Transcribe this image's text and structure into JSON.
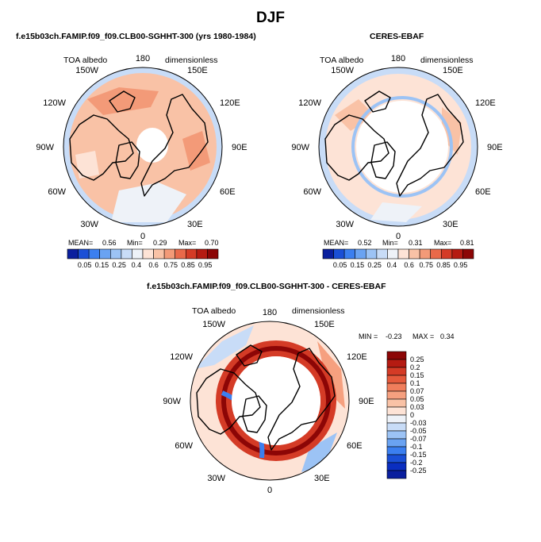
{
  "title": "DJF",
  "panels": [
    {
      "title": "f.e15b03ch.FAMIP.f09_f09.CLB00-SGHHT-300 (yrs 1980-1984)",
      "var_label": "TOA albedo",
      "units": "dimensionless",
      "stats": {
        "mean_label": "MEAN=",
        "mean": "0.56",
        "min_label": "Min=",
        "min": "0.29",
        "max_label": "Max=",
        "max": "0.70"
      }
    },
    {
      "title": "CERES-EBAF",
      "var_label": "TOA albedo",
      "units": "dimensionless",
      "stats": {
        "mean_label": "MEAN=",
        "mean": "0.52",
        "min_label": "Min=",
        "min": "0.31",
        "max_label": "Max=",
        "max": "0.81"
      }
    },
    {
      "title": "f.e15b03ch.FAMIP.f09_f09.CLB00-SGHHT-300 - CERES-EBAF",
      "var_label": "TOA albedo",
      "units": "dimensionless",
      "stats": {
        "min_label": "MIN =",
        "min": "-0.23",
        "max_label": "MAX =",
        "max": "0.34"
      }
    }
  ],
  "lon_labels": [
    "180",
    "150E",
    "120E",
    "90E",
    "60E",
    "30E",
    "0",
    "30W",
    "60W",
    "90W",
    "120W",
    "150W"
  ],
  "colorbars": {
    "absolute": {
      "labels": [
        "0.05",
        "0.15",
        "0.25",
        "0.4",
        "0.6",
        "0.75",
        "0.85",
        "0.95"
      ],
      "colors": [
        "#0a1f9e",
        "#1a4fd6",
        "#3b7ff0",
        "#6aa3f2",
        "#9cc3f5",
        "#c8dcf7",
        "#eef2f8",
        "#fde3d6",
        "#f9c2a6",
        "#f39a78",
        "#e9694a",
        "#d43b26",
        "#b51b12",
        "#8c0606"
      ]
    },
    "difference": {
      "labels": [
        "0.25",
        "0.2",
        "0.15",
        "0.1",
        "0.07",
        "0.05",
        "0.03",
        "0",
        "-0.03",
        "-0.05",
        "-0.07",
        "-0.1",
        "-0.15",
        "-0.2",
        "-0.25"
      ],
      "colors": [
        "#8c0606",
        "#b51b12",
        "#d43b26",
        "#e55a3c",
        "#f07e5c",
        "#f6a07f",
        "#f9c2a6",
        "#fde3d6",
        "#eef2f8",
        "#c8dcf7",
        "#9cc3f5",
        "#6aa3f2",
        "#3b7ff0",
        "#1a4fd6",
        "#0a2ec0",
        "#0a1f9e"
      ]
    }
  },
  "chart_data": [
    {
      "type": "heatmap",
      "projection": "north polar stereographic",
      "title": "f.e15b03ch.FAMIP.f09_f09.CLB00-SGHHT-300 (yrs 1980-1984)",
      "variable": "TOA albedo",
      "units": "dimensionless",
      "mean": 0.56,
      "min": 0.29,
      "max": 0.7,
      "levels": [
        0.05,
        0.15,
        0.25,
        0.4,
        0.6,
        0.75,
        0.85,
        0.95
      ],
      "pattern": "mostly 0.6-0.75 over ocean and continents, lower (0.4-0.6) in a band near the domain edge, white (missing) cap over the pole"
    },
    {
      "type": "heatmap",
      "projection": "north polar stereographic",
      "title": "CERES-EBAF",
      "variable": "TOA albedo",
      "units": "dimensionless",
      "mean": 0.52,
      "min": 0.31,
      "max": 0.81,
      "levels": [
        0.05,
        0.15,
        0.25,
        0.4,
        0.6,
        0.75,
        0.85,
        0.95
      ],
      "pattern": "mostly 0.4-0.6 with patches of 0.6-0.75, large white (missing) region over the polar cap"
    },
    {
      "type": "heatmap",
      "projection": "north polar stereographic",
      "title": "f.e15b03ch.FAMIP.f09_f09.CLB00-SGHHT-300 - CERES-EBAF",
      "variable": "TOA albedo",
      "units": "dimensionless",
      "min": -0.23,
      "max": 0.34,
      "levels": [
        -0.25,
        -0.2,
        -0.15,
        -0.1,
        -0.07,
        -0.05,
        -0.03,
        0,
        0.03,
        0.05,
        0.07,
        0.1,
        0.15,
        0.2,
        0.25
      ],
      "pattern": "strong positive ring (>0.25) around the polar-night boundary, mostly 0 to 0.07 elsewhere, negative patches (-0.03 to -0.15) along parts of the ring and near the edge"
    }
  ]
}
